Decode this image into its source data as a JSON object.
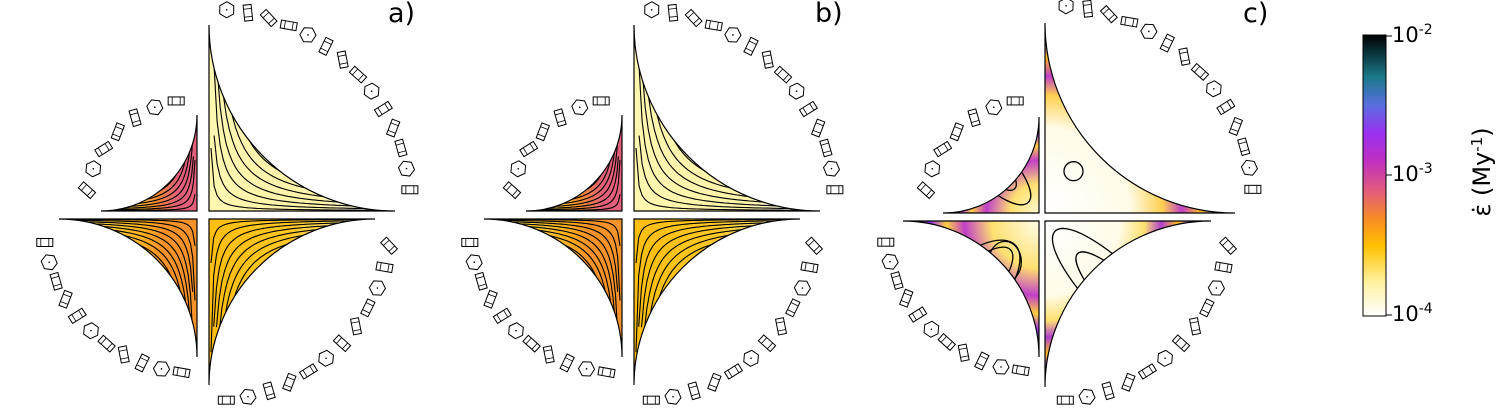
{
  "panels": [
    {
      "label": "a)"
    },
    {
      "label": "b)"
    },
    {
      "label": "c)"
    }
  ],
  "colorbar": {
    "label_main": "ε̇ (My",
    "label_sup": "-1",
    "label_close": ")",
    "ticks": [
      {
        "base": "10",
        "exp": "-2"
      },
      {
        "base": "10",
        "exp": "-3"
      },
      {
        "base": "10",
        "exp": "-4"
      }
    ],
    "scale": "log",
    "stops": [
      "#ffffff",
      "#ffe680",
      "#ffc000",
      "#f78a28",
      "#e05a80",
      "#c030c0",
      "#9a30f0",
      "#5a6ee0",
      "#1a7a8a",
      "#000000"
    ]
  }
}
